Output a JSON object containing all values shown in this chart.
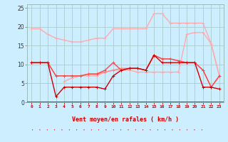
{
  "xlabel": "Vent moyen/en rafales ( km/h )",
  "bg_color": "#cceeff",
  "grid_color": "#aacccc",
  "x_ticks": [
    0,
    1,
    2,
    3,
    4,
    5,
    6,
    7,
    8,
    9,
    10,
    11,
    12,
    13,
    14,
    15,
    16,
    17,
    18,
    19,
    20,
    21,
    22,
    23
  ],
  "ylim": [
    0,
    26
  ],
  "yticks": [
    0,
    5,
    10,
    15,
    20,
    25
  ],
  "lines": [
    {
      "color": "#ffaaaa",
      "linewidth": 1.0,
      "marker": "+",
      "markersize": 3,
      "y": [
        19.5,
        19.5,
        18.0,
        17.0,
        16.5,
        16.0,
        16.0,
        16.5,
        17.0,
        17.0,
        19.5,
        19.5,
        19.5,
        19.5,
        19.5,
        23.5,
        23.5,
        21.0,
        21.0,
        21.0,
        21.0,
        21.0,
        15.5,
        7.0
      ]
    },
    {
      "color": "#ffaaaa",
      "linewidth": 1.0,
      "marker": "+",
      "markersize": 3,
      "y": [
        null,
        null,
        null,
        null,
        5.5,
        6.5,
        7.0,
        7.0,
        7.0,
        8.0,
        8.5,
        8.5,
        8.5,
        8.0,
        8.0,
        8.0,
        8.0,
        8.0,
        8.0,
        18.0,
        18.5,
        18.5,
        15.5,
        7.0
      ]
    },
    {
      "color": "#ff8888",
      "linewidth": 1.0,
      "marker": "+",
      "markersize": 3,
      "y": [
        10.5,
        10.5,
        10.5,
        7.0,
        7.0,
        7.0,
        7.0,
        7.5,
        7.5,
        8.0,
        8.5,
        9.0,
        9.0,
        9.0,
        8.5,
        12.5,
        11.5,
        11.5,
        11.0,
        10.5,
        10.5,
        8.5,
        4.0,
        7.0
      ]
    },
    {
      "color": "#ff4444",
      "linewidth": 1.0,
      "marker": "+",
      "markersize": 3,
      "y": [
        10.5,
        10.5,
        10.5,
        7.0,
        7.0,
        7.0,
        7.0,
        7.5,
        7.5,
        8.5,
        10.5,
        8.5,
        9.0,
        9.0,
        8.5,
        12.5,
        11.5,
        11.5,
        11.0,
        10.5,
        10.5,
        8.5,
        4.0,
        7.0
      ]
    },
    {
      "color": "#cc0000",
      "linewidth": 1.0,
      "marker": "+",
      "markersize": 3,
      "y": [
        10.5,
        10.5,
        10.5,
        1.5,
        4.0,
        4.0,
        4.0,
        4.0,
        4.0,
        3.5,
        7.0,
        8.5,
        9.0,
        9.0,
        8.5,
        12.5,
        10.5,
        10.5,
        10.5,
        10.5,
        10.5,
        4.0,
        4.0,
        3.5
      ]
    }
  ],
  "arrow_color": "#cc0000"
}
